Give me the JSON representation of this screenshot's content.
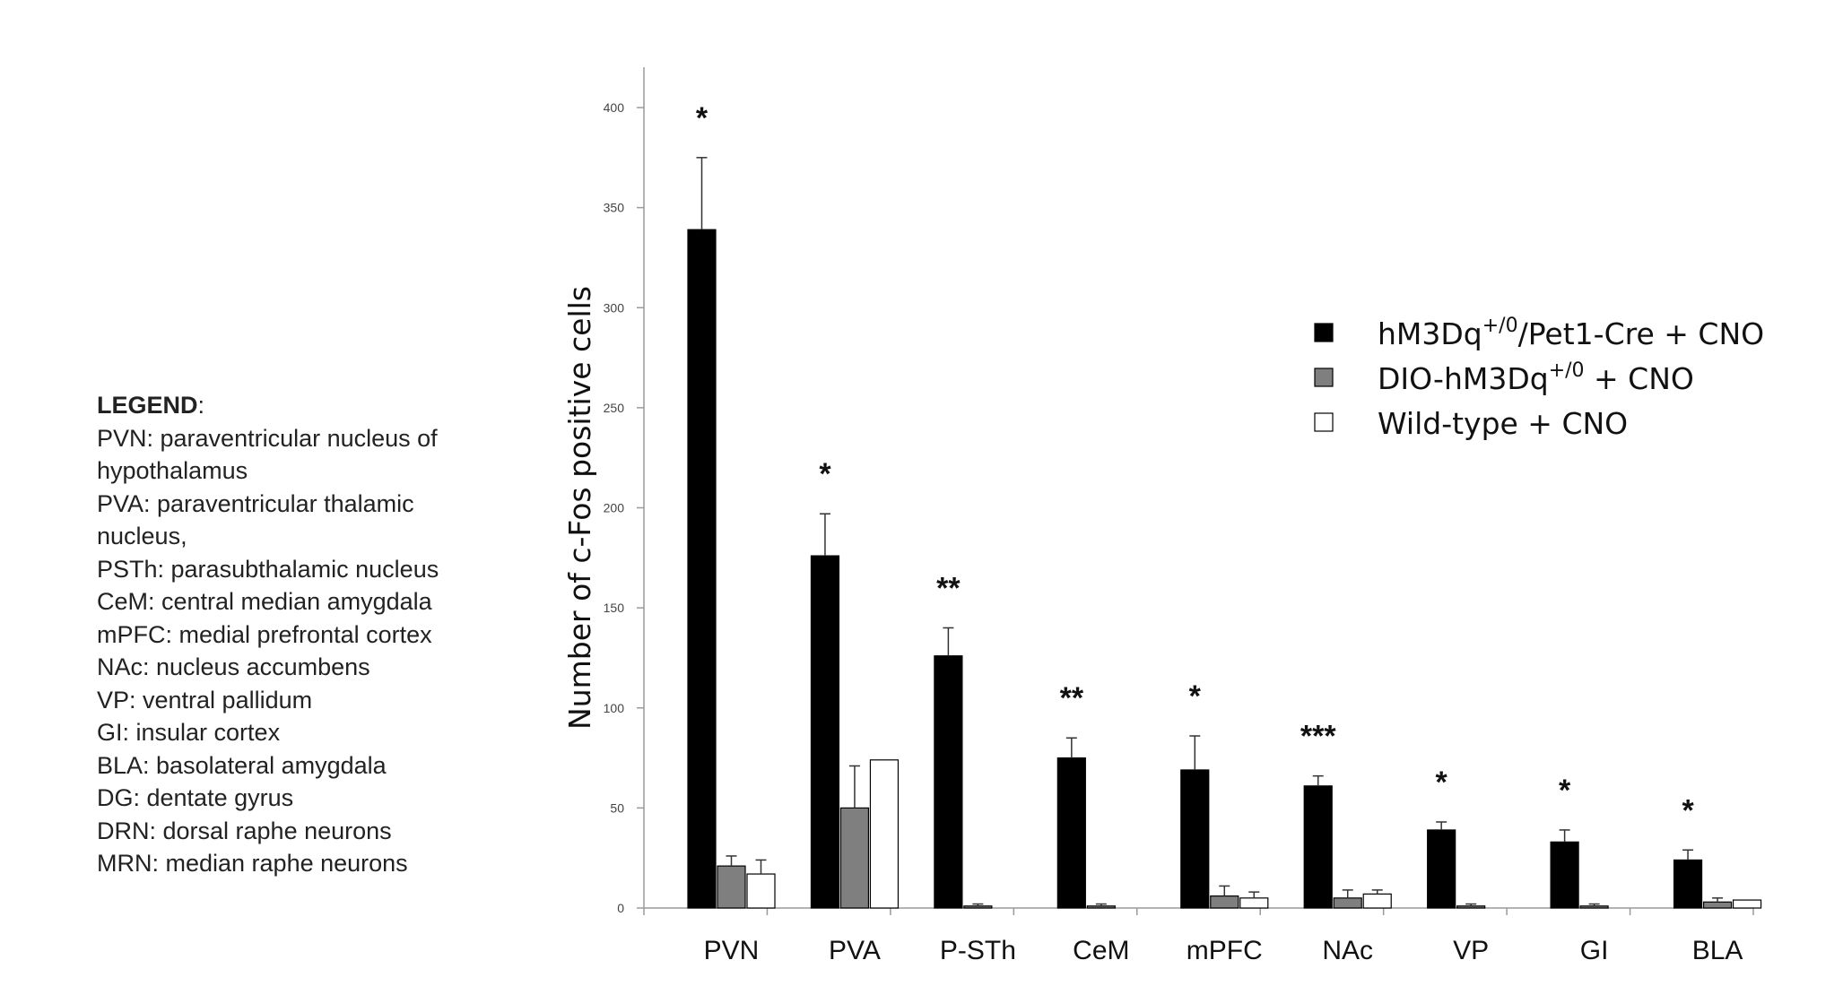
{
  "chart_data": {
    "type": "bar",
    "ylabel": "Number of c-Fos positive cells",
    "ylim": [
      0,
      400
    ],
    "yticks": [
      0,
      50,
      100,
      150,
      200,
      250,
      300,
      350,
      400
    ],
    "categories": [
      "PVN",
      "PVA",
      "P-STh",
      "CeM",
      "mPFC",
      "NAc",
      "VP",
      "GI",
      "BLA"
    ],
    "series": [
      {
        "name_parts": [
          "hM3Dq",
          "+/0",
          "/Pet1-Cre + CNO"
        ],
        "color": "#000000",
        "values": [
          339,
          176,
          126,
          75,
          69,
          61,
          39,
          33,
          24
        ],
        "errors": [
          36,
          21,
          14,
          10,
          17,
          5,
          4,
          6,
          5
        ]
      },
      {
        "name_parts": [
          "DIO-hM3Dq",
          "+/0",
          " + CNO"
        ],
        "color": "#7f7f7f",
        "values": [
          21,
          50,
          1,
          1,
          6,
          5,
          1,
          1,
          3
        ],
        "errors": [
          5,
          21,
          1,
          1,
          5,
          4,
          1,
          1,
          2
        ]
      },
      {
        "name_parts": [
          "Wild-type + CNO",
          "",
          ""
        ],
        "color": "#ffffff",
        "values": [
          17,
          74,
          0,
          0,
          5,
          7,
          0,
          0,
          4
        ],
        "errors": [
          7,
          0,
          0,
          0,
          3,
          2,
          0,
          0,
          0
        ]
      }
    ],
    "significance": [
      "*",
      "*",
      "**",
      "**",
      "*",
      "***",
      "*",
      "*",
      "*"
    ],
    "legend_position": "top-right",
    "grid": false
  },
  "legend_panel": {
    "heading": "LEGEND",
    "heading_suffix": ":",
    "lines": [
      "PVN: paraventricular nucleus of",
      "hypothalamus",
      "PVA: paraventricular thalamic",
      "nucleus,",
      "PSTh: parasubthalamic nucleus",
      "CeM: central median amygdala",
      "mPFC: medial prefrontal cortex",
      "NAc: nucleus accumbens",
      "VP: ventral pallidum",
      "GI: insular cortex",
      "BLA: basolateral amygdala",
      "DG: dentate gyrus",
      "DRN: dorsal raphe neurons",
      "MRN: median raphe neurons"
    ]
  }
}
